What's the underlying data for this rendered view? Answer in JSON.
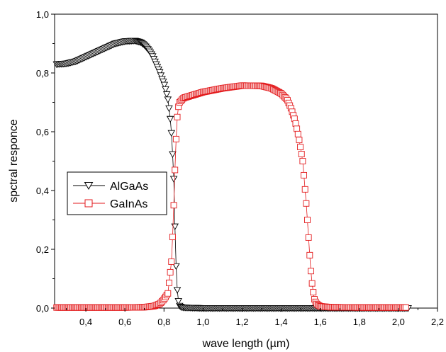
{
  "chart_data": {
    "type": "scatter",
    "xlabel": "wave length (µm)",
    "ylabel": "spctral responce",
    "xlim": [
      0.24,
      2.2
    ],
    "ylim": [
      0,
      1.0
    ],
    "x_ticks": [
      0.4,
      0.6,
      0.8,
      1.0,
      1.2,
      1.4,
      1.6,
      1.8,
      2.0,
      2.2
    ],
    "x_tick_labels": [
      "0,4",
      "0,6",
      "0,8",
      "1,0",
      "1,2",
      "1,4",
      "1,6",
      "1,8",
      "2,0",
      "2,2"
    ],
    "y_ticks": [
      0.0,
      0.2,
      0.4,
      0.6,
      0.8,
      1.0
    ],
    "y_tick_labels": [
      "0,0",
      "0,2",
      "0,4",
      "0,6",
      "0,8",
      "1,0"
    ],
    "grid": false,
    "legend_position": "middle-left",
    "series": [
      {
        "name": "AlGaAs",
        "marker": "triangle-down",
        "color": "#000000",
        "x": [
          0.25,
          0.3,
          0.35,
          0.4,
          0.45,
          0.5,
          0.55,
          0.6,
          0.65,
          0.68,
          0.7,
          0.72,
          0.74,
          0.76,
          0.78,
          0.79,
          0.8,
          0.81,
          0.82,
          0.83,
          0.84,
          0.85,
          0.86,
          0.87,
          0.88,
          0.89,
          0.9,
          0.95,
          1.0,
          1.2,
          1.4,
          1.6,
          1.8,
          2.0,
          2.05
        ],
        "y": [
          0.83,
          0.832,
          0.84,
          0.855,
          0.87,
          0.885,
          0.9,
          0.908,
          0.91,
          0.905,
          0.895,
          0.88,
          0.86,
          0.83,
          0.8,
          0.78,
          0.765,
          0.74,
          0.71,
          0.66,
          0.58,
          0.44,
          0.17,
          0.035,
          0.008,
          0.003,
          0.002,
          0.001,
          0.0,
          0.0,
          0.0,
          0.0,
          0.0,
          0.0,
          0.0
        ]
      },
      {
        "name": "GaInAs",
        "marker": "square",
        "color": "#e31a1c",
        "x": [
          0.25,
          0.4,
          0.6,
          0.7,
          0.75,
          0.78,
          0.8,
          0.82,
          0.84,
          0.85,
          0.86,
          0.87,
          0.88,
          0.9,
          0.95,
          1.0,
          1.1,
          1.2,
          1.3,
          1.35,
          1.4,
          1.43,
          1.45,
          1.47,
          1.49,
          1.51,
          1.53,
          1.54,
          1.55,
          1.56,
          1.57,
          1.58,
          1.6,
          1.65,
          1.8,
          2.0,
          2.04
        ],
        "y": [
          0.002,
          0.002,
          0.002,
          0.003,
          0.007,
          0.015,
          0.03,
          0.05,
          0.17,
          0.35,
          0.55,
          0.675,
          0.7,
          0.715,
          0.725,
          0.735,
          0.748,
          0.757,
          0.756,
          0.748,
          0.73,
          0.71,
          0.68,
          0.64,
          0.58,
          0.5,
          0.34,
          0.24,
          0.14,
          0.07,
          0.03,
          0.015,
          0.006,
          0.003,
          0.002,
          0.002,
          0.002
        ]
      }
    ]
  }
}
